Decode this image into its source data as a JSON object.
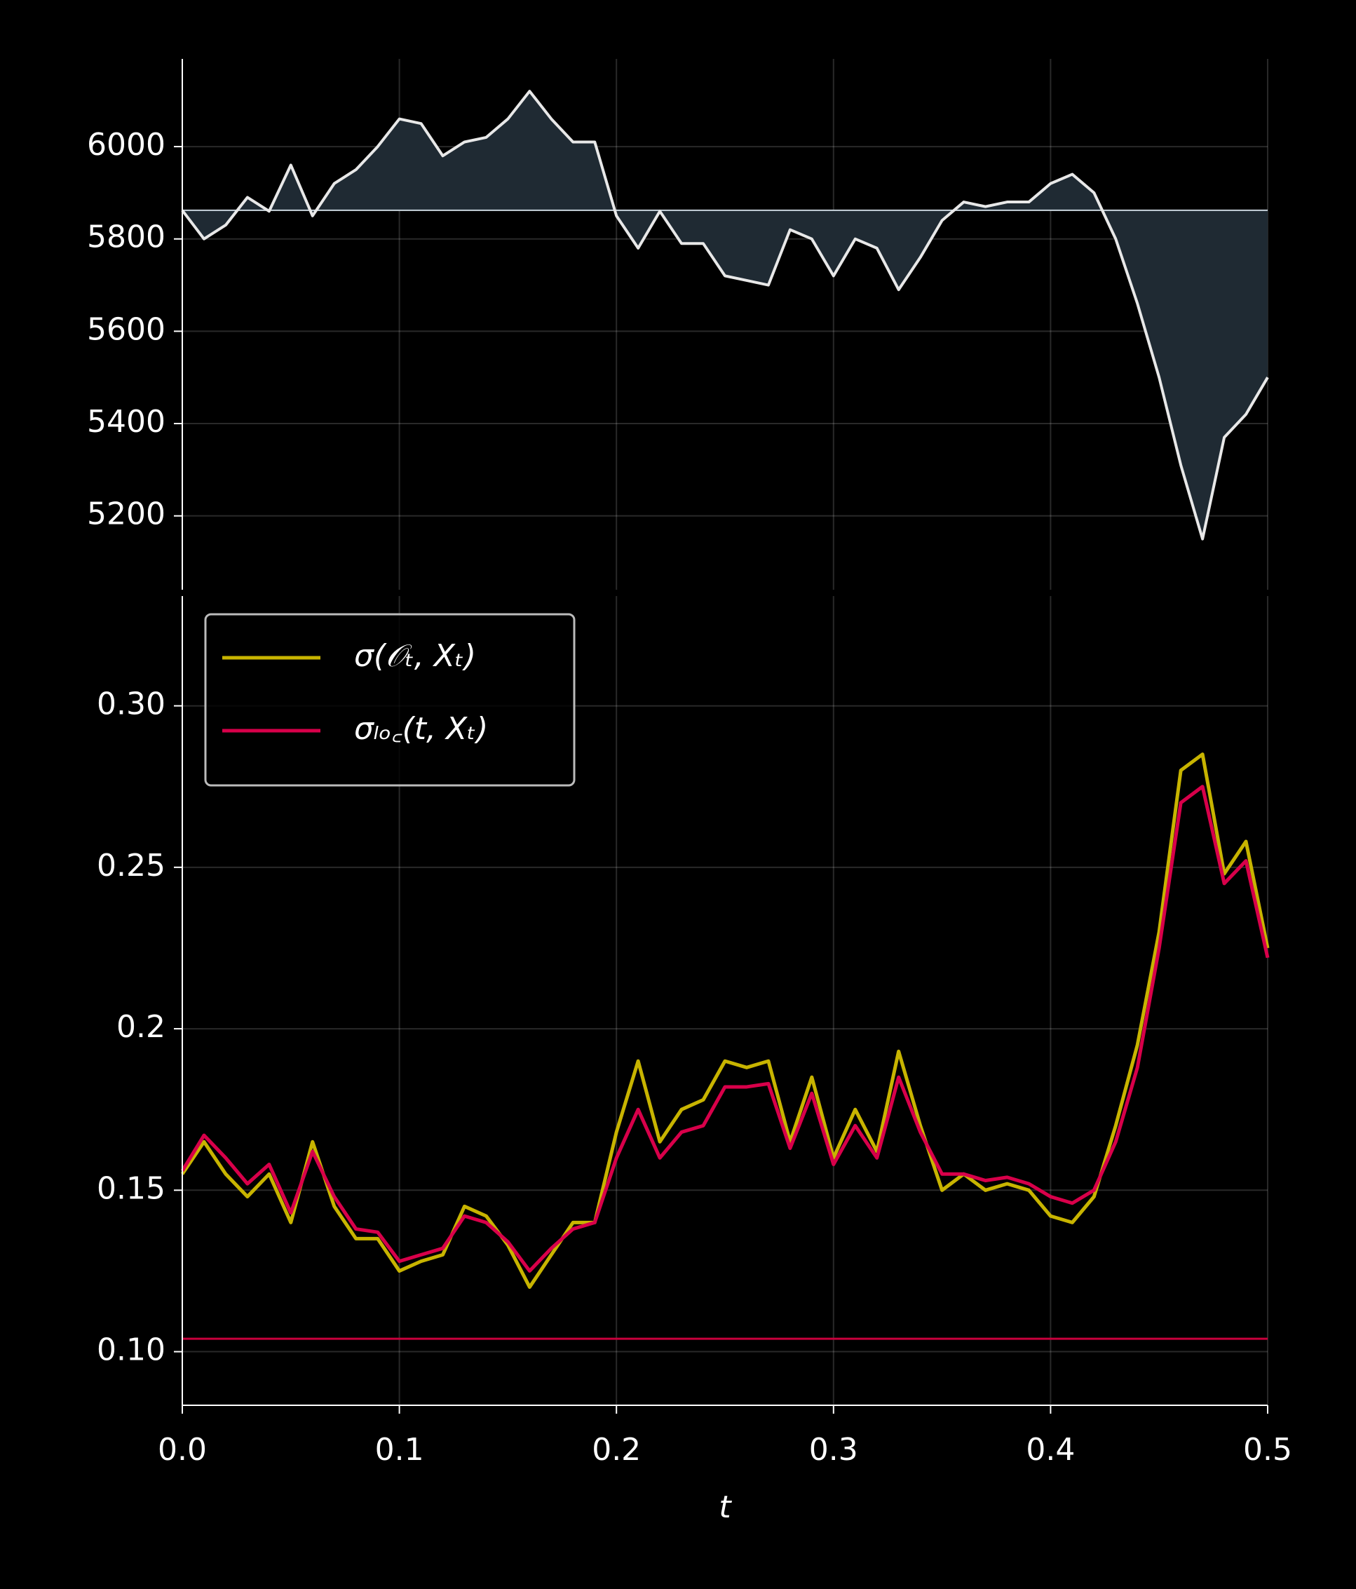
{
  "chart_data": [
    {
      "type": "area",
      "x": [
        0,
        0.01,
        0.02,
        0.03,
        0.04,
        0.05,
        0.06,
        0.07,
        0.08,
        0.09,
        0.1,
        0.11,
        0.12,
        0.13,
        0.14,
        0.15,
        0.16,
        0.17,
        0.18,
        0.19,
        0.2,
        0.21,
        0.22,
        0.23,
        0.24,
        0.25,
        0.26,
        0.27,
        0.28,
        0.29,
        0.3,
        0.31,
        0.32,
        0.33,
        0.34,
        0.35,
        0.36,
        0.37,
        0.38,
        0.39,
        0.4,
        0.41,
        0.42,
        0.43,
        0.44,
        0.45,
        0.46,
        0.47,
        0.48,
        0.49,
        0.5
      ],
      "series": [
        {
          "color": "#e8e8e8",
          "fill": "#1f2a33",
          "values": [
            5862,
            5800,
            5830,
            5890,
            5860,
            5960,
            5850,
            5920,
            5950,
            6000,
            6060,
            6050,
            5980,
            6010,
            6020,
            6060,
            6120,
            6060,
            6010,
            6010,
            5850,
            5780,
            5860,
            5790,
            5790,
            5720,
            5710,
            5700,
            5820,
            5800,
            5720,
            5800,
            5780,
            5690,
            5760,
            5840,
            5880,
            5870,
            5880,
            5880,
            5920,
            5940,
            5900,
            5800,
            5660,
            5500,
            5310,
            5150,
            5370,
            5420,
            5500
          ]
        }
      ],
      "baseline": {
        "value": 5862,
        "color": "#c8d4dc"
      },
      "xlim": [
        0,
        0.5
      ],
      "xticks": [
        0,
        0.1,
        0.2,
        0.3,
        0.4,
        0.5
      ],
      "ylim": [
        5040,
        6190
      ],
      "yticks": [
        5200,
        5400,
        5600,
        5800,
        6000
      ],
      "grid": true
    },
    {
      "type": "line",
      "x": [
        0,
        0.01,
        0.02,
        0.03,
        0.04,
        0.05,
        0.06,
        0.07,
        0.08,
        0.09,
        0.1,
        0.11,
        0.12,
        0.13,
        0.14,
        0.15,
        0.16,
        0.17,
        0.18,
        0.19,
        0.2,
        0.21,
        0.22,
        0.23,
        0.24,
        0.25,
        0.26,
        0.27,
        0.28,
        0.29,
        0.3,
        0.31,
        0.32,
        0.33,
        0.34,
        0.35,
        0.36,
        0.37,
        0.38,
        0.39,
        0.4,
        0.41,
        0.42,
        0.43,
        0.44,
        0.45,
        0.46,
        0.47,
        0.48,
        0.49,
        0.5
      ],
      "xlabel": "t",
      "series": [
        {
          "name": "σ(𝒪ₜ, Xₜ)",
          "color": "#c8b400",
          "values": [
            0.155,
            0.165,
            0.155,
            0.148,
            0.155,
            0.14,
            0.165,
            0.145,
            0.135,
            0.135,
            0.125,
            0.128,
            0.13,
            0.145,
            0.142,
            0.133,
            0.12,
            0.13,
            0.14,
            0.14,
            0.168,
            0.19,
            0.165,
            0.175,
            0.178,
            0.19,
            0.188,
            0.19,
            0.165,
            0.185,
            0.16,
            0.175,
            0.162,
            0.193,
            0.17,
            0.15,
            0.155,
            0.15,
            0.152,
            0.15,
            0.142,
            0.14,
            0.148,
            0.17,
            0.195,
            0.23,
            0.28,
            0.285,
            0.248,
            0.258,
            0.225
          ]
        },
        {
          "name": "σₗₒ꜀(t, Xₜ)",
          "color": "#d8004a",
          "values": [
            0.156,
            0.167,
            0.16,
            0.152,
            0.158,
            0.143,
            0.162,
            0.148,
            0.138,
            0.137,
            0.128,
            0.13,
            0.132,
            0.142,
            0.14,
            0.134,
            0.125,
            0.132,
            0.138,
            0.14,
            0.16,
            0.175,
            0.16,
            0.168,
            0.17,
            0.182,
            0.182,
            0.183,
            0.163,
            0.18,
            0.158,
            0.17,
            0.16,
            0.185,
            0.168,
            0.155,
            0.155,
            0.153,
            0.154,
            0.152,
            0.148,
            0.146,
            0.15,
            0.165,
            0.188,
            0.225,
            0.27,
            0.275,
            0.245,
            0.252,
            0.222
          ]
        }
      ],
      "hline": {
        "value": 0.104,
        "color": "#c8003c"
      },
      "xlim": [
        0,
        0.5
      ],
      "xticks": [
        {
          "value": 0,
          "label": "0.0"
        },
        0.1,
        0.2,
        0.3,
        0.4,
        0.5
      ],
      "ylim": [
        0.0834,
        0.334
      ],
      "yticks": [
        {
          "value": 0.1,
          "label": "0.10"
        },
        0.15,
        0.2,
        0.25,
        {
          "value": 0.3,
          "label": "0.30"
        }
      ],
      "grid": true,
      "legend": "upper left"
    }
  ]
}
